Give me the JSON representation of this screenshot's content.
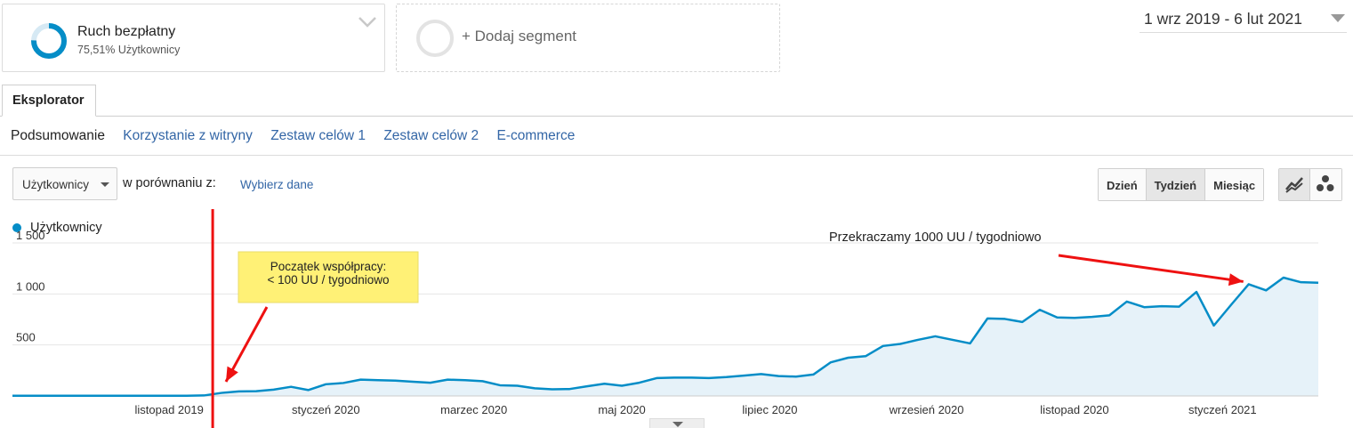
{
  "segments": {
    "active": {
      "name": "Ruch bezpłatny",
      "subtitle": "75,51% Użytkownicy",
      "share": 0.7551,
      "color": "#058dc7"
    },
    "add_label": "+ Dodaj segment"
  },
  "date_range": "1 wrz 2019 - 6 lut 2021",
  "tabs": [
    {
      "label": "Eksplorator",
      "active": true
    }
  ],
  "subnav": [
    {
      "label": "Podsumowanie",
      "active": true
    },
    {
      "label": "Korzystanie z witryny",
      "active": false
    },
    {
      "label": "Zestaw celów 1",
      "active": false
    },
    {
      "label": "Zestaw celów 2",
      "active": false
    },
    {
      "label": "E-commerce",
      "active": false
    }
  ],
  "controls": {
    "metric": "Użytkownicy",
    "compare_label": "w porównaniu z:",
    "choose_data": "Wybierz dane",
    "periods": [
      {
        "label": "Dzień",
        "active": false
      },
      {
        "label": "Tydzień",
        "active": true
      },
      {
        "label": "Miesiąc",
        "active": false
      }
    ],
    "views": [
      {
        "icon": "line-chart-icon",
        "active": true
      },
      {
        "icon": "motion-chart-icon",
        "active": false
      }
    ]
  },
  "chart_data": {
    "type": "area",
    "series": [
      {
        "name": "Użytkownicy",
        "color": "#058dc7",
        "values": [
          2,
          2,
          2,
          2,
          2,
          2,
          2,
          2,
          2,
          2,
          2,
          5,
          30,
          45,
          47,
          62,
          90,
          58,
          115,
          127,
          160,
          155,
          150,
          140,
          130,
          160,
          155,
          145,
          105,
          100,
          75,
          65,
          68,
          95,
          120,
          100,
          130,
          175,
          180,
          180,
          175,
          185,
          200,
          215,
          195,
          190,
          210,
          330,
          375,
          390,
          490,
          510,
          550,
          585,
          550,
          515,
          760,
          755,
          725,
          845,
          770,
          765,
          775,
          790,
          925,
          870,
          880,
          875,
          1020,
          690,
          895,
          1095,
          1035,
          1160,
          1115,
          1110
        ],
        "line_color": "#058dc7",
        "fill_color": "#e6f2f9"
      }
    ],
    "x_labels": [
      "listopad 2019",
      "styczeń 2020",
      "marzec 2020",
      "maj 2020",
      "lipiec 2020",
      "wrzesień 2020",
      "listopad 2020",
      "styczeń 2021"
    ],
    "x_label_positions": [
      9,
      18,
      26.5,
      35,
      43.5,
      52.5,
      61,
      69.5
    ],
    "y_ticks": [
      "1 500",
      "1 000",
      "500"
    ],
    "y_tick_values": [
      1500,
      1000,
      500
    ],
    "ylim": [
      0,
      1500
    ],
    "grid": true,
    "annotations": {
      "start_box": {
        "line1": "Początek współpracy:",
        "line2": "< 100 UU / tygodniowo",
        "marker_index": 11.5,
        "color": "#fff176"
      },
      "milestone": {
        "text": "Przekraczamy 1000 UU / tygodniowo",
        "target_index": 71
      },
      "marker_color": "#ee1111"
    }
  }
}
